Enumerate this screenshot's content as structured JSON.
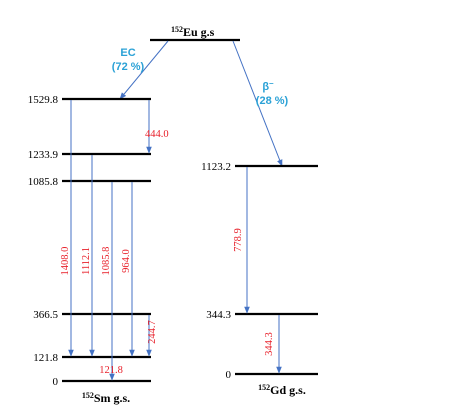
{
  "parent": {
    "mass": "152",
    "label": "Eu g.s"
  },
  "decays": {
    "ec": {
      "label": "EC",
      "pct": "(72 %)"
    },
    "beta": {
      "label": "β",
      "sup": "–",
      "pct": "(28 %)"
    }
  },
  "sm": {
    "mass": "152",
    "label": "Sm g.s.",
    "levels": [
      "1529.8",
      "1233.9",
      "1085.8",
      "366.5",
      "121.8",
      "0"
    ],
    "gammas": [
      "1408.0",
      "1112.1",
      "1085.8",
      "964.0",
      "244.7",
      "444.0",
      "121.8"
    ]
  },
  "gd": {
    "mass": "152",
    "label": "Gd g.s.",
    "levels": [
      "1123.2",
      "344.3",
      "0"
    ],
    "gammas": [
      "778.9",
      "344.3"
    ]
  }
}
